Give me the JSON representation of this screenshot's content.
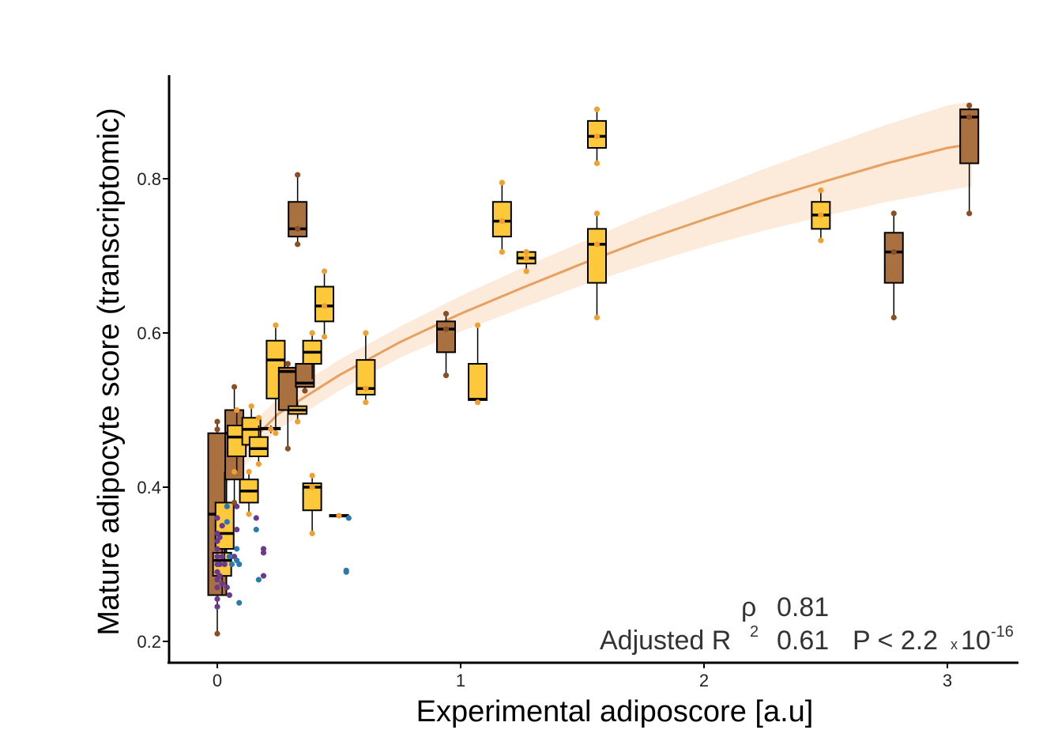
{
  "chart_data": {
    "type": "scatter",
    "title": "",
    "xlabel": "Experimental adiposcore [a.u]",
    "ylabel": "Mature adipocyte score (transcriptomic)",
    "xlim": [
      -0.2,
      3.3
    ],
    "ylim": [
      0.17,
      0.95
    ],
    "x_ticks": [
      0,
      1,
      2,
      3
    ],
    "y_ticks": [
      0.2,
      0.4,
      0.6,
      0.8
    ],
    "x_tick_labels": [
      "0",
      "1",
      "2",
      "3"
    ],
    "y_tick_labels": [
      "0.2",
      "0.4",
      "0.6",
      "0.8"
    ],
    "grid": false,
    "colors": {
      "brown_box": "#a9713f",
      "yellow_box": "#fdc93a",
      "brown_point": "#8a4e24",
      "orange_point": "#f0a030",
      "purple_point": "#6b3a8c",
      "blue_point": "#2a7ab0",
      "fit_line": "#e8a060",
      "fit_band": "#fbe1cb"
    },
    "fit": {
      "name": "log fit",
      "x": [
        0.0,
        0.25,
        0.5,
        0.75,
        1.0,
        1.25,
        1.5,
        1.75,
        2.0,
        2.25,
        2.5,
        2.75,
        3.0,
        3.1
      ],
      "y": [
        0.415,
        0.495,
        0.545,
        0.588,
        0.625,
        0.658,
        0.69,
        0.72,
        0.747,
        0.773,
        0.797,
        0.82,
        0.84,
        0.845
      ],
      "lower": [
        0.39,
        0.475,
        0.525,
        0.568,
        0.602,
        0.632,
        0.662,
        0.688,
        0.712,
        0.733,
        0.752,
        0.77,
        0.785,
        0.79
      ],
      "upper": [
        0.44,
        0.515,
        0.565,
        0.608,
        0.648,
        0.684,
        0.718,
        0.752,
        0.782,
        0.813,
        0.842,
        0.87,
        0.895,
        0.9
      ]
    },
    "boxes": [
      {
        "x": 0.0,
        "q1": 0.26,
        "median": 0.365,
        "q3": 0.47,
        "low": 0.21,
        "high": 0.485,
        "color": "brown"
      },
      {
        "x": 0.02,
        "q1": 0.285,
        "median": 0.305,
        "q3": 0.315,
        "low": 0.26,
        "high": 0.33,
        "color": "yellow"
      },
      {
        "x": 0.03,
        "q1": 0.32,
        "median": 0.34,
        "q3": 0.38,
        "low": 0.3,
        "high": 0.42,
        "color": "yellow"
      },
      {
        "x": 0.07,
        "q1": 0.41,
        "median": 0.47,
        "q3": 0.5,
        "low": 0.38,
        "high": 0.53,
        "color": "brown"
      },
      {
        "x": 0.08,
        "q1": 0.44,
        "median": 0.465,
        "q3": 0.48,
        "low": 0.42,
        "high": 0.5,
        "color": "yellow"
      },
      {
        "x": 0.14,
        "q1": 0.455,
        "median": 0.475,
        "q3": 0.49,
        "low": 0.44,
        "high": 0.505,
        "color": "yellow"
      },
      {
        "x": 0.17,
        "q1": 0.44,
        "median": 0.45,
        "q3": 0.465,
        "low": 0.43,
        "high": 0.48,
        "color": "yellow"
      },
      {
        "x": 0.13,
        "q1": 0.38,
        "median": 0.395,
        "q3": 0.41,
        "low": 0.365,
        "high": 0.42,
        "color": "yellow"
      },
      {
        "x": 0.22,
        "q1": 0.475,
        "median": 0.476,
        "q3": 0.477,
        "low": 0.47,
        "high": 0.48,
        "color": "yellow"
      },
      {
        "x": 0.24,
        "q1": 0.515,
        "median": 0.565,
        "q3": 0.59,
        "low": 0.47,
        "high": 0.61,
        "color": "yellow"
      },
      {
        "x": 0.29,
        "q1": 0.5,
        "median": 0.55,
        "q3": 0.555,
        "low": 0.45,
        "high": 0.56,
        "color": "brown"
      },
      {
        "x": 0.33,
        "q1": 0.495,
        "median": 0.5,
        "q3": 0.505,
        "low": 0.485,
        "high": 0.51,
        "color": "yellow"
      },
      {
        "x": 0.33,
        "q1": 0.725,
        "median": 0.735,
        "q3": 0.77,
        "low": 0.715,
        "high": 0.805,
        "color": "brown"
      },
      {
        "x": 0.36,
        "q1": 0.53,
        "median": 0.535,
        "q3": 0.56,
        "low": 0.525,
        "high": 0.565,
        "color": "brown"
      },
      {
        "x": 0.39,
        "q1": 0.56,
        "median": 0.575,
        "q3": 0.59,
        "low": 0.54,
        "high": 0.6,
        "color": "yellow"
      },
      {
        "x": 0.39,
        "q1": 0.37,
        "median": 0.4,
        "q3": 0.405,
        "low": 0.34,
        "high": 0.415,
        "color": "yellow"
      },
      {
        "x": 0.44,
        "q1": 0.615,
        "median": 0.635,
        "q3": 0.66,
        "low": 0.595,
        "high": 0.68,
        "color": "yellow"
      },
      {
        "x": 0.5,
        "q1": 0.362,
        "median": 0.363,
        "q3": 0.364,
        "low": 0.362,
        "high": 0.364,
        "color": "yellow"
      },
      {
        "x": 0.61,
        "q1": 0.52,
        "median": 0.528,
        "q3": 0.565,
        "low": 0.51,
        "high": 0.6,
        "color": "yellow"
      },
      {
        "x": 0.94,
        "q1": 0.575,
        "median": 0.605,
        "q3": 0.615,
        "low": 0.545,
        "high": 0.625,
        "color": "brown"
      },
      {
        "x": 1.07,
        "q1": 0.513,
        "median": 0.514,
        "q3": 0.56,
        "low": 0.51,
        "high": 0.61,
        "color": "yellow"
      },
      {
        "x": 1.17,
        "q1": 0.725,
        "median": 0.745,
        "q3": 0.77,
        "low": 0.705,
        "high": 0.795,
        "color": "yellow"
      },
      {
        "x": 1.27,
        "q1": 0.69,
        "median": 0.697,
        "q3": 0.705,
        "low": 0.68,
        "high": 0.705,
        "color": "yellow"
      },
      {
        "x": 1.56,
        "q1": 0.84,
        "median": 0.855,
        "q3": 0.875,
        "low": 0.82,
        "high": 0.89,
        "color": "yellow"
      },
      {
        "x": 1.56,
        "q1": 0.665,
        "median": 0.715,
        "q3": 0.735,
        "low": 0.62,
        "high": 0.755,
        "color": "yellow"
      },
      {
        "x": 2.48,
        "q1": 0.735,
        "median": 0.753,
        "q3": 0.77,
        "low": 0.72,
        "high": 0.785,
        "color": "yellow"
      },
      {
        "x": 2.78,
        "q1": 0.665,
        "median": 0.705,
        "q3": 0.73,
        "low": 0.62,
        "high": 0.755,
        "color": "brown"
      },
      {
        "x": 3.09,
        "q1": 0.82,
        "median": 0.88,
        "q3": 0.89,
        "low": 0.755,
        "high": 0.895,
        "color": "brown"
      }
    ],
    "points": [
      {
        "x": 0.0,
        "y": 0.21,
        "c": "brown"
      },
      {
        "x": 0.0,
        "y": 0.485,
        "c": "brown"
      },
      {
        "x": 0.0,
        "y": 0.475,
        "c": "brown"
      },
      {
        "x": 0.07,
        "y": 0.53,
        "c": "brown"
      },
      {
        "x": 0.07,
        "y": 0.38,
        "c": "brown"
      },
      {
        "x": 0.07,
        "y": 0.42,
        "c": "orange"
      },
      {
        "x": 0.08,
        "y": 0.5,
        "c": "orange"
      },
      {
        "x": 0.14,
        "y": 0.505,
        "c": "orange"
      },
      {
        "x": 0.17,
        "y": 0.49,
        "c": "orange"
      },
      {
        "x": 0.13,
        "y": 0.42,
        "c": "orange"
      },
      {
        "x": 0.13,
        "y": 0.365,
        "c": "orange"
      },
      {
        "x": 0.17,
        "y": 0.43,
        "c": "orange"
      },
      {
        "x": 0.22,
        "y": 0.475,
        "c": "orange"
      },
      {
        "x": 0.24,
        "y": 0.61,
        "c": "orange"
      },
      {
        "x": 0.24,
        "y": 0.47,
        "c": "orange"
      },
      {
        "x": 0.29,
        "y": 0.45,
        "c": "brown"
      },
      {
        "x": 0.29,
        "y": 0.56,
        "c": "brown"
      },
      {
        "x": 0.33,
        "y": 0.805,
        "c": "brown"
      },
      {
        "x": 0.33,
        "y": 0.715,
        "c": "brown"
      },
      {
        "x": 0.33,
        "y": 0.735,
        "c": "brown"
      },
      {
        "x": 0.33,
        "y": 0.485,
        "c": "orange"
      },
      {
        "x": 0.39,
        "y": 0.6,
        "c": "orange"
      },
      {
        "x": 0.36,
        "y": 0.525,
        "c": "brown"
      },
      {
        "x": 0.39,
        "y": 0.415,
        "c": "orange"
      },
      {
        "x": 0.39,
        "y": 0.34,
        "c": "orange"
      },
      {
        "x": 0.39,
        "y": 0.4,
        "c": "orange"
      },
      {
        "x": 0.44,
        "y": 0.68,
        "c": "orange"
      },
      {
        "x": 0.44,
        "y": 0.595,
        "c": "orange"
      },
      {
        "x": 0.44,
        "y": 0.635,
        "c": "orange"
      },
      {
        "x": 0.5,
        "y": 0.363,
        "c": "orange"
      },
      {
        "x": 0.61,
        "y": 0.6,
        "c": "orange"
      },
      {
        "x": 0.61,
        "y": 0.51,
        "c": "orange"
      },
      {
        "x": 0.61,
        "y": 0.528,
        "c": "orange"
      },
      {
        "x": 0.94,
        "y": 0.625,
        "c": "brown"
      },
      {
        "x": 0.94,
        "y": 0.545,
        "c": "brown"
      },
      {
        "x": 0.94,
        "y": 0.605,
        "c": "brown"
      },
      {
        "x": 1.07,
        "y": 0.61,
        "c": "orange"
      },
      {
        "x": 1.07,
        "y": 0.51,
        "c": "orange"
      },
      {
        "x": 1.17,
        "y": 0.795,
        "c": "orange"
      },
      {
        "x": 1.17,
        "y": 0.705,
        "c": "orange"
      },
      {
        "x": 1.17,
        "y": 0.745,
        "c": "orange"
      },
      {
        "x": 1.27,
        "y": 0.705,
        "c": "orange"
      },
      {
        "x": 1.27,
        "y": 0.68,
        "c": "orange"
      },
      {
        "x": 1.27,
        "y": 0.697,
        "c": "orange"
      },
      {
        "x": 1.56,
        "y": 0.89,
        "c": "orange"
      },
      {
        "x": 1.56,
        "y": 0.82,
        "c": "orange"
      },
      {
        "x": 1.56,
        "y": 0.855,
        "c": "orange"
      },
      {
        "x": 1.56,
        "y": 0.755,
        "c": "orange"
      },
      {
        "x": 1.56,
        "y": 0.62,
        "c": "orange"
      },
      {
        "x": 1.56,
        "y": 0.715,
        "c": "orange"
      },
      {
        "x": 2.48,
        "y": 0.785,
        "c": "orange"
      },
      {
        "x": 2.48,
        "y": 0.72,
        "c": "orange"
      },
      {
        "x": 2.48,
        "y": 0.753,
        "c": "orange"
      },
      {
        "x": 2.78,
        "y": 0.755,
        "c": "brown"
      },
      {
        "x": 2.78,
        "y": 0.62,
        "c": "brown"
      },
      {
        "x": 2.78,
        "y": 0.705,
        "c": "brown"
      },
      {
        "x": 3.09,
        "y": 0.895,
        "c": "brown"
      },
      {
        "x": 3.09,
        "y": 0.755,
        "c": "brown"
      },
      {
        "x": 3.09,
        "y": 0.88,
        "c": "brown"
      },
      {
        "x": 0.0,
        "y": 0.36,
        "c": "purple"
      },
      {
        "x": 0.0,
        "y": 0.34,
        "c": "purple"
      },
      {
        "x": 0.0,
        "y": 0.33,
        "c": "purple"
      },
      {
        "x": 0.0,
        "y": 0.32,
        "c": "purple"
      },
      {
        "x": 0.0,
        "y": 0.31,
        "c": "purple"
      },
      {
        "x": 0.0,
        "y": 0.3,
        "c": "purple"
      },
      {
        "x": 0.0,
        "y": 0.29,
        "c": "purple"
      },
      {
        "x": 0.0,
        "y": 0.28,
        "c": "purple"
      },
      {
        "x": 0.0,
        "y": 0.27,
        "c": "purple"
      },
      {
        "x": 0.0,
        "y": 0.255,
        "c": "purple"
      },
      {
        "x": 0.0,
        "y": 0.245,
        "c": "purple"
      },
      {
        "x": 0.01,
        "y": 0.335,
        "c": "purple"
      },
      {
        "x": 0.01,
        "y": 0.3,
        "c": "purple"
      },
      {
        "x": 0.01,
        "y": 0.285,
        "c": "purple"
      },
      {
        "x": 0.02,
        "y": 0.35,
        "c": "purple"
      },
      {
        "x": 0.02,
        "y": 0.31,
        "c": "purple"
      },
      {
        "x": 0.02,
        "y": 0.275,
        "c": "purple"
      },
      {
        "x": 0.03,
        "y": 0.3,
        "c": "purple"
      },
      {
        "x": 0.04,
        "y": 0.27,
        "c": "purple"
      },
      {
        "x": 0.05,
        "y": 0.26,
        "c": "purple"
      },
      {
        "x": 0.07,
        "y": 0.31,
        "c": "purple"
      },
      {
        "x": 0.08,
        "y": 0.375,
        "c": "purple"
      },
      {
        "x": 0.08,
        "y": 0.345,
        "c": "purple"
      },
      {
        "x": 0.19,
        "y": 0.32,
        "c": "purple"
      },
      {
        "x": 0.19,
        "y": 0.315,
        "c": "purple"
      },
      {
        "x": 0.19,
        "y": 0.285,
        "c": "purple"
      },
      {
        "x": 0.16,
        "y": 0.36,
        "c": "purple"
      },
      {
        "x": 0.04,
        "y": 0.375,
        "c": "blue"
      },
      {
        "x": 0.04,
        "y": 0.355,
        "c": "blue"
      },
      {
        "x": 0.05,
        "y": 0.31,
        "c": "blue"
      },
      {
        "x": 0.06,
        "y": 0.3,
        "c": "blue"
      },
      {
        "x": 0.08,
        "y": 0.32,
        "c": "blue"
      },
      {
        "x": 0.08,
        "y": 0.305,
        "c": "blue"
      },
      {
        "x": 0.09,
        "y": 0.3,
        "c": "blue"
      },
      {
        "x": 0.09,
        "y": 0.25,
        "c": "blue"
      },
      {
        "x": 0.16,
        "y": 0.345,
        "c": "blue"
      },
      {
        "x": 0.17,
        "y": 0.28,
        "c": "blue"
      },
      {
        "x": 0.54,
        "y": 0.36,
        "c": "blue"
      },
      {
        "x": 0.53,
        "y": 0.29,
        "c": "blue"
      },
      {
        "x": 0.53,
        "y": 0.292,
        "c": "blue"
      }
    ]
  },
  "stats": {
    "rho_label": "ρ",
    "rho_value": "0.81",
    "r2_label": "Adjusted R",
    "r2_sup": "2",
    "r2_value": "0.61",
    "p_label": "P < 2.2",
    "p_times": "x",
    "p_base": "10",
    "p_exp": "-16"
  }
}
